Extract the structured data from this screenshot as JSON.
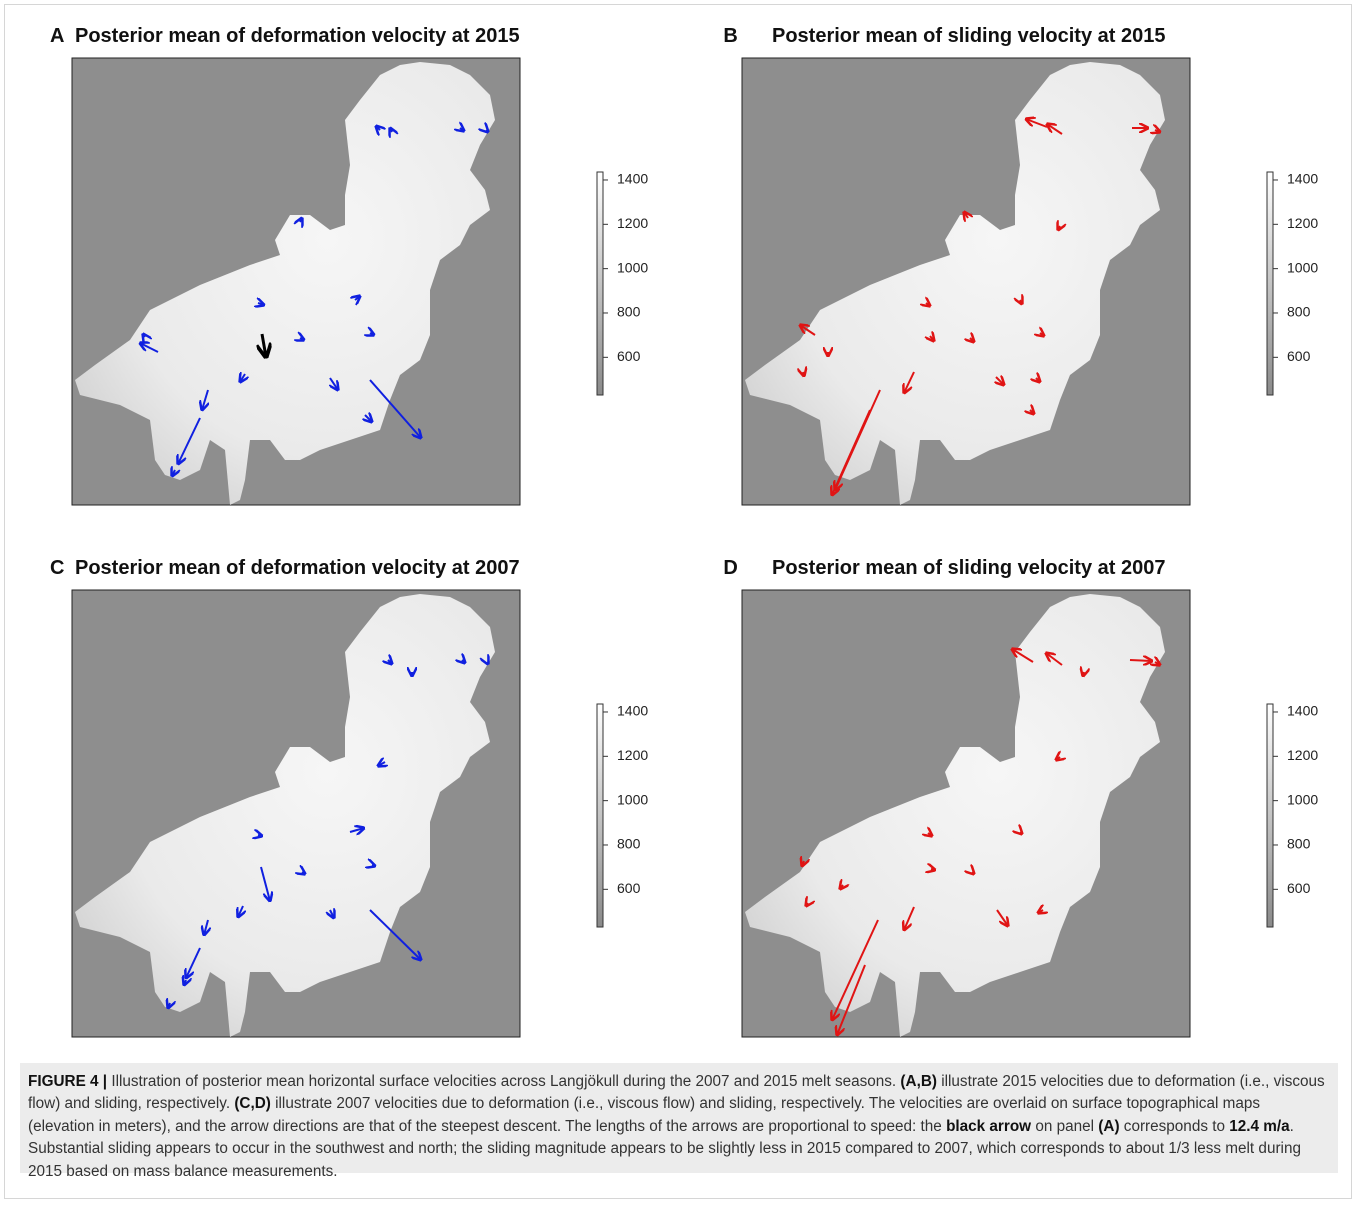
{
  "panels": [
    {
      "letter": "A",
      "title": "Posterior mean of deformation velocity at 2015",
      "colorbar": {
        "lim": [
          430,
          1436
        ],
        "ticks": [
          1400,
          1200,
          1000,
          800,
          600
        ]
      }
    },
    {
      "letter": "B",
      "title": "Posterior mean of sliding velocity at 2015",
      "colorbar": {
        "lim": [
          430,
          1436
        ],
        "ticks": [
          1400,
          1200,
          1000,
          800,
          600
        ]
      }
    },
    {
      "letter": "C",
      "title": "Posterior mean of deformation velocity at 2007",
      "colorbar": {
        "lim": [
          430,
          1436
        ],
        "ticks": [
          1400,
          1200,
          1000,
          800,
          600
        ]
      }
    },
    {
      "letter": "D",
      "title": "Posterior mean of sliding velocity at 2007",
      "colorbar": {
        "lim": [
          430,
          1436
        ],
        "ticks": [
          1400,
          1200,
          1000,
          800,
          600
        ]
      }
    }
  ],
  "caption": [
    {
      "text": "FIGURE 4 |",
      "bold": true
    },
    {
      "text": " Illustration of posterior mean horizontal surface velocities across Langjökull during the 2007 and 2015 melt seasons. ",
      "bold": false
    },
    {
      "text": "(A,B)",
      "bold": true
    },
    {
      "text": " illustrate 2015 velocities due to deformation (i.e., viscous flow) and sliding, respectively. ",
      "bold": false
    },
    {
      "text": "(C,D)",
      "bold": true
    },
    {
      "text": " illustrate 2007 velocities due to deformation (i.e., viscous flow) and sliding, respectively. The velocities are overlaid on surface topographical maps (elevation in meters), and the arrow directions are that of the steepest descent. The lengths of the arrows are proportional to speed: the ",
      "bold": false
    },
    {
      "text": "black arrow",
      "bold": true
    },
    {
      "text": " on panel ",
      "bold": false
    },
    {
      "text": "(A)",
      "bold": true
    },
    {
      "text": " corresponds to ",
      "bold": false
    },
    {
      "text": "12.4 m/a",
      "bold": true
    },
    {
      "text": ". Substantial sliding appears to occur in the southwest and north; the sliding magnitude appears to be slightly less in 2015 compared to 2007, which corresponds to about 1/3 less melt during 2015 based on mass balance measurements.",
      "bold": false
    }
  ]
}
